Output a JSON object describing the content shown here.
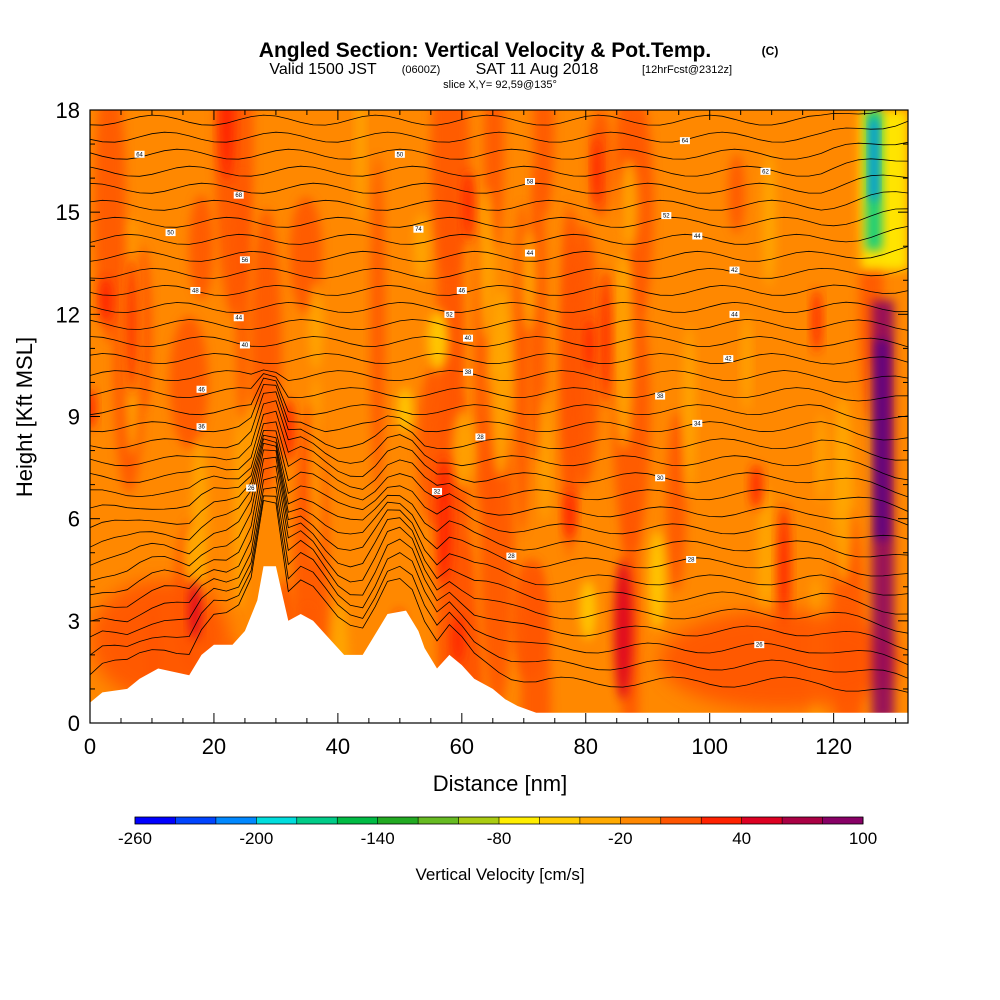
{
  "header": {
    "title": "Angled Section: Vertical Velocity & Pot.Temp.",
    "title_units": "(C)",
    "subtitle_valid": "Valid 1500 JST",
    "subtitle_z": "(0600Z)",
    "subtitle_date": "SAT 11 Aug 2018",
    "subtitle_fcst": "[12hrFcst@2312z]",
    "slice": "slice X,Y= 92,59@135°"
  },
  "chart_data": {
    "type": "heatmap",
    "title": "Angled Section: Vertical Velocity & Pot.Temp.",
    "xlabel": "Distance [nm]",
    "ylabel": "Height [Kft MSL]",
    "xlim": [
      0,
      132
    ],
    "ylim": [
      0,
      18
    ],
    "x_ticks": [
      0,
      20,
      40,
      60,
      80,
      100,
      120
    ],
    "y_ticks": [
      0,
      3,
      6,
      9,
      12,
      15,
      18
    ],
    "colorbar": {
      "label": "Vertical Velocity [cm/s]",
      "range": [
        -260,
        100
      ],
      "step": 20,
      "tick_values": [
        -260,
        -200,
        -140,
        -80,
        -20,
        40,
        100
      ],
      "colors": [
        "#0000ff",
        "#0044ff",
        "#0088ff",
        "#00dddd",
        "#00cc88",
        "#00bb44",
        "#22aa22",
        "#66bb22",
        "#aacc11",
        "#ffee00",
        "#ffcc00",
        "#ffaa00",
        "#ff8800",
        "#ff5500",
        "#ff2200",
        "#dd0022",
        "#aa0044",
        "#880066"
      ]
    },
    "terrain": [
      {
        "x": 0,
        "h": 0.6
      },
      {
        "x": 2,
        "h": 0.9
      },
      {
        "x": 6,
        "h": 1.0
      },
      {
        "x": 8,
        "h": 1.3
      },
      {
        "x": 11,
        "h": 1.6
      },
      {
        "x": 16,
        "h": 1.4
      },
      {
        "x": 18,
        "h": 2.0
      },
      {
        "x": 20,
        "h": 2.3
      },
      {
        "x": 23,
        "h": 2.3
      },
      {
        "x": 25,
        "h": 2.7
      },
      {
        "x": 27,
        "h": 3.6
      },
      {
        "x": 28,
        "h": 4.6
      },
      {
        "x": 30,
        "h": 4.6
      },
      {
        "x": 31,
        "h": 3.8
      },
      {
        "x": 32,
        "h": 3.0
      },
      {
        "x": 34,
        "h": 3.2
      },
      {
        "x": 36,
        "h": 3.0
      },
      {
        "x": 38,
        "h": 2.6
      },
      {
        "x": 41,
        "h": 2.0
      },
      {
        "x": 44,
        "h": 2.0
      },
      {
        "x": 46,
        "h": 2.6
      },
      {
        "x": 48,
        "h": 3.2
      },
      {
        "x": 51,
        "h": 3.3
      },
      {
        "x": 53,
        "h": 2.7
      },
      {
        "x": 54,
        "h": 2.2
      },
      {
        "x": 56,
        "h": 1.6
      },
      {
        "x": 58,
        "h": 2.0
      },
      {
        "x": 60,
        "h": 1.7
      },
      {
        "x": 62,
        "h": 1.3
      },
      {
        "x": 65,
        "h": 1.0
      },
      {
        "x": 67,
        "h": 0.7
      },
      {
        "x": 69,
        "h": 0.5
      },
      {
        "x": 72,
        "h": 0.3
      },
      {
        "x": 132,
        "h": 0.3
      }
    ],
    "theta_labels": [
      {
        "x": 8,
        "y": 16.7,
        "text": "64"
      },
      {
        "x": 24,
        "y": 15.5,
        "text": "68"
      },
      {
        "x": 13,
        "y": 14.4,
        "text": "50"
      },
      {
        "x": 25,
        "y": 13.6,
        "text": "56"
      },
      {
        "x": 17,
        "y": 12.7,
        "text": "48"
      },
      {
        "x": 24,
        "y": 11.9,
        "text": "44"
      },
      {
        "x": 25,
        "y": 11.1,
        "text": "40"
      },
      {
        "x": 18,
        "y": 9.8,
        "text": "46"
      },
      {
        "x": 18,
        "y": 8.7,
        "text": "36"
      },
      {
        "x": 26,
        "y": 6.9,
        "text": "26"
      },
      {
        "x": 50,
        "y": 16.7,
        "text": "50"
      },
      {
        "x": 53,
        "y": 14.5,
        "text": "74"
      },
      {
        "x": 60,
        "y": 12.7,
        "text": "46"
      },
      {
        "x": 58,
        "y": 12.0,
        "text": "52"
      },
      {
        "x": 61,
        "y": 11.3,
        "text": "40"
      },
      {
        "x": 61,
        "y": 10.3,
        "text": "38"
      },
      {
        "x": 63,
        "y": 8.4,
        "text": "28"
      },
      {
        "x": 56,
        "y": 6.8,
        "text": "32"
      },
      {
        "x": 68,
        "y": 4.9,
        "text": "28"
      },
      {
        "x": 71,
        "y": 15.9,
        "text": "58"
      },
      {
        "x": 71,
        "y": 13.8,
        "text": "44"
      },
      {
        "x": 93,
        "y": 14.9,
        "text": "52"
      },
      {
        "x": 96,
        "y": 17.1,
        "text": "64"
      },
      {
        "x": 98,
        "y": 14.3,
        "text": "44"
      },
      {
        "x": 104,
        "y": 13.3,
        "text": "42"
      },
      {
        "x": 104,
        "y": 12.0,
        "text": "44"
      },
      {
        "x": 103,
        "y": 10.7,
        "text": "42"
      },
      {
        "x": 92,
        "y": 9.6,
        "text": "38"
      },
      {
        "x": 98,
        "y": 8.8,
        "text": "34"
      },
      {
        "x": 92,
        "y": 7.2,
        "text": "30"
      },
      {
        "x": 97,
        "y": 4.8,
        "text": "28"
      },
      {
        "x": 108,
        "y": 2.3,
        "text": "26"
      },
      {
        "x": 109,
        "y": 16.2,
        "text": "62"
      }
    ]
  }
}
